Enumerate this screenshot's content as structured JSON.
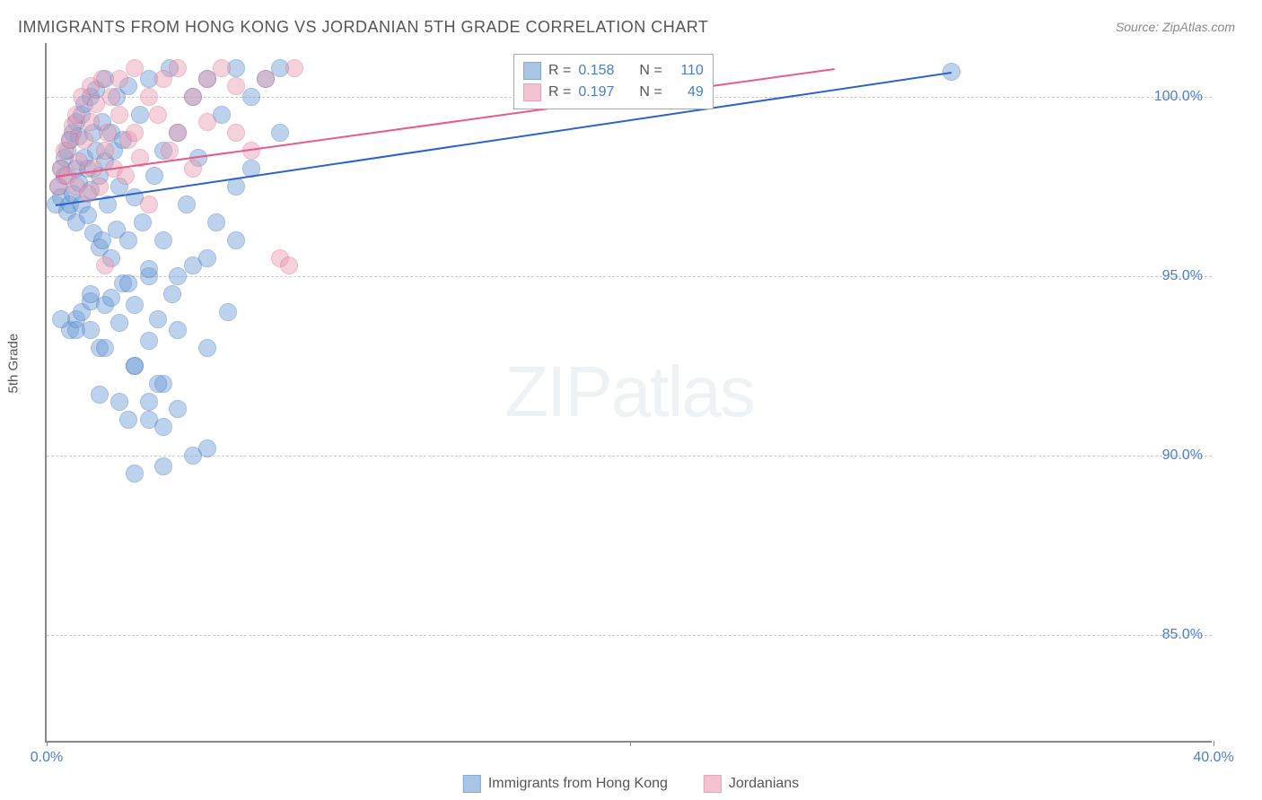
{
  "title": "IMMIGRANTS FROM HONG KONG VS JORDANIAN 5TH GRADE CORRELATION CHART",
  "source": "Source: ZipAtlas.com",
  "ylabel": "5th Grade",
  "watermark": {
    "bold": "ZIP",
    "light": "atlas"
  },
  "chart": {
    "type": "scatter",
    "xlim": [
      0,
      40
    ],
    "ylim": [
      82,
      101.5
    ],
    "xticks": [
      {
        "v": 0,
        "label": "0.0%"
      },
      {
        "v": 20,
        "label": ""
      },
      {
        "v": 40,
        "label": "40.0%"
      }
    ],
    "yticks": [
      {
        "v": 85,
        "label": "85.0%"
      },
      {
        "v": 90,
        "label": "90.0%"
      },
      {
        "v": 95,
        "label": "95.0%"
      },
      {
        "v": 100,
        "label": "100.0%"
      }
    ],
    "background_color": "#ffffff",
    "grid_color": "#cccccc",
    "marker_radius": 10,
    "marker_opacity": 0.45,
    "marker_stroke_width": 1.5
  },
  "series": [
    {
      "name": "Immigrants from Hong Kong",
      "fill_color": "#6f9fd8",
      "stroke_color": "#3d6db5",
      "line_color": "#2d62c9",
      "r_label": "R =",
      "r_value": "0.158",
      "n_label": "N =",
      "n_value": "110",
      "trend": {
        "x1": 0.3,
        "y1": 97.0,
        "x2": 31.0,
        "y2": 100.7
      },
      "points": [
        [
          0.3,
          97.0
        ],
        [
          0.4,
          97.5
        ],
        [
          0.5,
          98.0
        ],
        [
          0.5,
          97.2
        ],
        [
          0.6,
          97.8
        ],
        [
          0.6,
          98.3
        ],
        [
          0.7,
          96.8
        ],
        [
          0.7,
          98.5
        ],
        [
          0.8,
          97.0
        ],
        [
          0.8,
          98.8
        ],
        [
          0.9,
          99.0
        ],
        [
          0.9,
          97.3
        ],
        [
          1.0,
          98.0
        ],
        [
          1.0,
          99.3
        ],
        [
          1.0,
          96.5
        ],
        [
          1.1,
          97.6
        ],
        [
          1.1,
          98.9
        ],
        [
          1.2,
          99.5
        ],
        [
          1.2,
          97.0
        ],
        [
          1.3,
          98.3
        ],
        [
          1.3,
          99.8
        ],
        [
          1.4,
          96.7
        ],
        [
          1.4,
          98.0
        ],
        [
          1.5,
          100.0
        ],
        [
          1.5,
          97.4
        ],
        [
          1.6,
          99.0
        ],
        [
          1.6,
          96.2
        ],
        [
          1.7,
          98.5
        ],
        [
          1.7,
          100.2
        ],
        [
          1.8,
          95.8
        ],
        [
          1.8,
          97.8
        ],
        [
          1.9,
          99.3
        ],
        [
          1.9,
          96.0
        ],
        [
          2.0,
          98.2
        ],
        [
          2.0,
          100.5
        ],
        [
          2.1,
          97.0
        ],
        [
          2.2,
          99.0
        ],
        [
          2.2,
          95.5
        ],
        [
          2.3,
          98.5
        ],
        [
          2.4,
          96.3
        ],
        [
          2.4,
          100.0
        ],
        [
          2.5,
          97.5
        ],
        [
          2.6,
          94.8
        ],
        [
          2.6,
          98.8
        ],
        [
          2.8,
          96.0
        ],
        [
          2.8,
          100.3
        ],
        [
          3.0,
          97.2
        ],
        [
          3.0,
          94.2
        ],
        [
          3.2,
          99.5
        ],
        [
          3.3,
          96.5
        ],
        [
          3.5,
          95.0
        ],
        [
          3.5,
          100.5
        ],
        [
          3.7,
          97.8
        ],
        [
          3.8,
          93.8
        ],
        [
          4.0,
          98.5
        ],
        [
          4.0,
          96.0
        ],
        [
          4.2,
          100.8
        ],
        [
          4.3,
          94.5
        ],
        [
          4.5,
          99.0
        ],
        [
          4.5,
          93.5
        ],
        [
          4.8,
          97.0
        ],
        [
          5.0,
          100.0
        ],
        [
          5.0,
          95.3
        ],
        [
          5.2,
          98.3
        ],
        [
          5.5,
          93.0
        ],
        [
          5.5,
          100.5
        ],
        [
          5.8,
          96.5
        ],
        [
          6.0,
          99.5
        ],
        [
          6.2,
          94.0
        ],
        [
          6.5,
          100.8
        ],
        [
          6.5,
          97.5
        ],
        [
          7.0,
          98.0
        ],
        [
          7.0,
          100.0
        ],
        [
          7.5,
          100.5
        ],
        [
          8.0,
          99.0
        ],
        [
          8.0,
          100.8
        ],
        [
          0.8,
          93.5
        ],
        [
          1.0,
          93.8
        ],
        [
          1.2,
          94.0
        ],
        [
          1.5,
          94.3
        ],
        [
          1.8,
          93.0
        ],
        [
          2.0,
          94.2
        ],
        [
          2.5,
          93.7
        ],
        [
          3.0,
          92.5
        ],
        [
          3.5,
          93.2
        ],
        [
          4.0,
          92.0
        ],
        [
          1.8,
          91.7
        ],
        [
          2.5,
          91.5
        ],
        [
          3.5,
          91.0
        ],
        [
          4.5,
          91.3
        ],
        [
          3.0,
          92.5
        ],
        [
          3.8,
          92.0
        ],
        [
          2.0,
          93.0
        ],
        [
          0.5,
          93.8
        ],
        [
          1.5,
          94.5
        ],
        [
          2.8,
          91.0
        ],
        [
          3.5,
          91.5
        ],
        [
          4.0,
          90.8
        ],
        [
          5.0,
          90.0
        ],
        [
          5.5,
          90.2
        ],
        [
          1.0,
          93.5
        ],
        [
          3.0,
          89.5
        ],
        [
          4.0,
          89.7
        ],
        [
          1.5,
          93.5
        ],
        [
          2.2,
          94.4
        ],
        [
          2.8,
          94.8
        ],
        [
          3.5,
          95.2
        ],
        [
          4.5,
          95.0
        ],
        [
          5.5,
          95.5
        ],
        [
          6.5,
          96.0
        ],
        [
          31.0,
          100.7
        ]
      ]
    },
    {
      "name": "Jordanians",
      "fill_color": "#e89ab0",
      "stroke_color": "#d76a8a",
      "line_color": "#e85a88",
      "r_label": "R =",
      "r_value": "0.197",
      "n_label": "N =",
      "n_value": "49",
      "trend": {
        "x1": 0.3,
        "y1": 97.8,
        "x2": 27.0,
        "y2": 100.8
      },
      "points": [
        [
          0.4,
          97.5
        ],
        [
          0.5,
          98.0
        ],
        [
          0.6,
          98.5
        ],
        [
          0.7,
          97.8
        ],
        [
          0.8,
          98.8
        ],
        [
          0.9,
          99.2
        ],
        [
          1.0,
          97.5
        ],
        [
          1.0,
          99.5
        ],
        [
          1.1,
          98.2
        ],
        [
          1.2,
          100.0
        ],
        [
          1.3,
          98.8
        ],
        [
          1.4,
          97.3
        ],
        [
          1.5,
          99.3
        ],
        [
          1.5,
          100.3
        ],
        [
          1.6,
          98.0
        ],
        [
          1.7,
          99.8
        ],
        [
          1.8,
          97.5
        ],
        [
          1.9,
          100.5
        ],
        [
          2.0,
          98.5
        ],
        [
          2.1,
          99.0
        ],
        [
          2.2,
          100.0
        ],
        [
          2.3,
          98.0
        ],
        [
          2.5,
          99.5
        ],
        [
          2.5,
          100.5
        ],
        [
          2.7,
          97.8
        ],
        [
          2.8,
          98.8
        ],
        [
          3.0,
          100.8
        ],
        [
          3.0,
          99.0
        ],
        [
          3.2,
          98.3
        ],
        [
          3.5,
          100.0
        ],
        [
          3.5,
          97.0
        ],
        [
          3.8,
          99.5
        ],
        [
          4.0,
          100.5
        ],
        [
          4.2,
          98.5
        ],
        [
          4.5,
          99.0
        ],
        [
          4.5,
          100.8
        ],
        [
          5.0,
          100.0
        ],
        [
          5.0,
          98.0
        ],
        [
          5.5,
          100.5
        ],
        [
          5.5,
          99.3
        ],
        [
          6.0,
          100.8
        ],
        [
          6.5,
          99.0
        ],
        [
          6.5,
          100.3
        ],
        [
          7.0,
          98.5
        ],
        [
          7.5,
          100.5
        ],
        [
          8.5,
          100.8
        ],
        [
          2.0,
          95.3
        ],
        [
          8.0,
          95.5
        ],
        [
          8.3,
          95.3
        ]
      ]
    }
  ]
}
